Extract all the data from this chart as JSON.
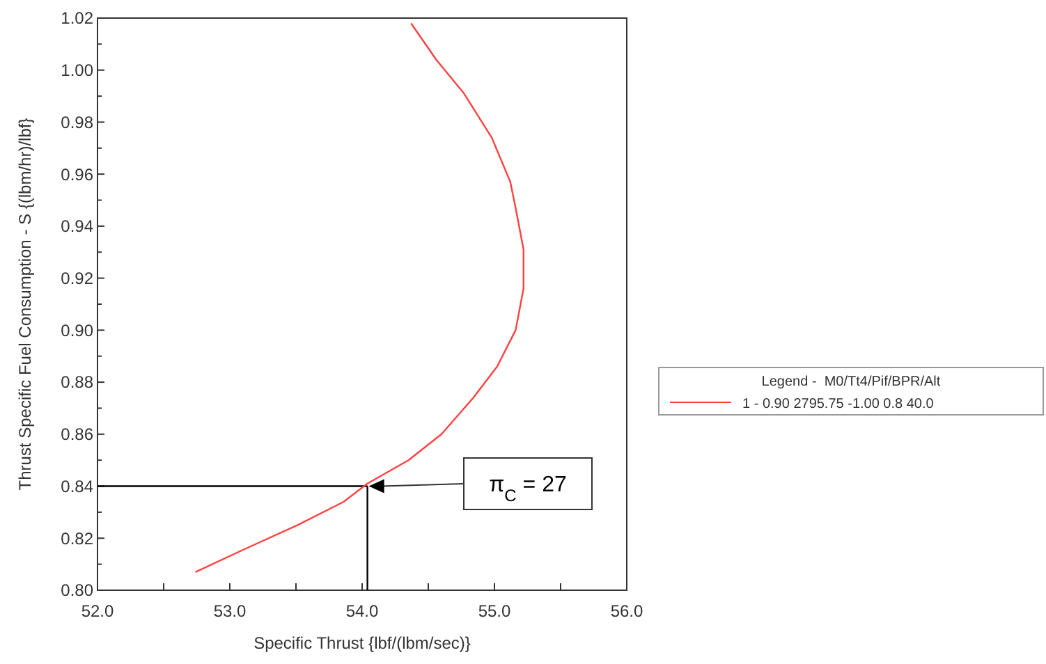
{
  "chart_data": {
    "type": "line",
    "xlabel": "Specific Thrust {lbf/(lbm/sec)}",
    "ylabel": "Thrust Specific Fuel Consumption - S {(lbm/hr)/lbf}",
    "legend_title": "Legend -  M0/Tt4/Pif/BPR/Alt",
    "legend": "right",
    "grid": false,
    "marker": "none",
    "line_style": "solid",
    "xlim": [
      52,
      56
    ],
    "ylim": [
      0.8,
      1.02
    ],
    "xticks": [
      {
        "value": 52,
        "label": "52.0"
      },
      {
        "value": 52.5,
        "label": null
      },
      {
        "value": 53,
        "label": "53.0"
      },
      {
        "value": 53.5,
        "label": null
      },
      {
        "value": 54,
        "label": "54.0"
      },
      {
        "value": 54.5,
        "label": null
      },
      {
        "value": 55,
        "label": "55.0"
      },
      {
        "value": 55.5,
        "label": null
      },
      {
        "value": 56,
        "label": "56.0"
      }
    ],
    "yticks": [
      {
        "value": 0.8,
        "label": "0.80"
      },
      {
        "value": 0.81,
        "label": null
      },
      {
        "value": 0.82,
        "label": "0.82"
      },
      {
        "value": 0.83,
        "label": null
      },
      {
        "value": 0.84,
        "label": "0.84"
      },
      {
        "value": 0.85,
        "label": null
      },
      {
        "value": 0.86,
        "label": "0.86"
      },
      {
        "value": 0.87,
        "label": null
      },
      {
        "value": 0.88,
        "label": "0.88"
      },
      {
        "value": 0.89,
        "label": null
      },
      {
        "value": 0.9,
        "label": "0.90"
      },
      {
        "value": 0.91,
        "label": null
      },
      {
        "value": 0.92,
        "label": "0.92"
      },
      {
        "value": 0.93,
        "label": null
      },
      {
        "value": 0.94,
        "label": "0.94"
      },
      {
        "value": 0.95,
        "label": null
      },
      {
        "value": 0.96,
        "label": "0.96"
      },
      {
        "value": 0.97,
        "label": null
      },
      {
        "value": 0.98,
        "label": "0.98"
      },
      {
        "value": 0.99,
        "label": null
      },
      {
        "value": 1.0,
        "label": "1.00"
      },
      {
        "value": 1.01,
        "label": null
      },
      {
        "value": 1.02,
        "label": "1.02"
      }
    ],
    "series": [
      {
        "name": "1 - 0.90 2795.75 -1.00 0.8 40.0",
        "color": "#ff4040",
        "x": [
          52.74,
          53.12,
          53.51,
          53.86,
          54.04,
          54.35,
          54.6,
          54.84,
          55.02,
          55.16,
          55.22,
          55.22,
          55.16,
          55.12,
          54.98,
          54.77,
          54.56,
          54.37
        ],
        "values": [
          0.807,
          0.816,
          0.825,
          0.834,
          0.841,
          0.85,
          0.86,
          0.874,
          0.886,
          0.9,
          0.916,
          0.931,
          0.947,
          0.957,
          0.974,
          0.991,
          1.004,
          1.018
        ]
      }
    ],
    "ref_lines": [
      {
        "axis": "y",
        "value": 0.84,
        "color": "#000000"
      },
      {
        "axis": "x",
        "value": 54.04,
        "color": "#000000"
      }
    ],
    "annotations": [
      "π$_{C}$ = 27"
    ]
  }
}
